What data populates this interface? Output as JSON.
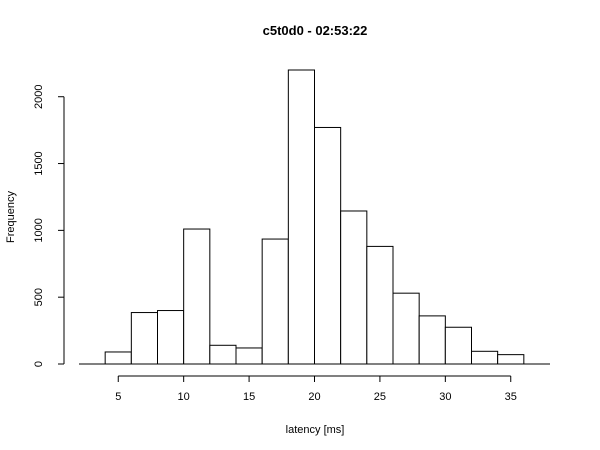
{
  "chart_data": {
    "type": "bar",
    "title": "c5t0d0 - 02:53:22",
    "xlabel": "latency [ms]",
    "ylabel": "Frequency",
    "xlim": [
      2,
      38
    ],
    "ylim": [
      0,
      2200
    ],
    "xticks": [
      5,
      10,
      15,
      20,
      25,
      30,
      35
    ],
    "yticks": [
      0,
      500,
      1000,
      1500,
      2000
    ],
    "bins": [
      {
        "x0": 2,
        "x1": 4,
        "value": 0
      },
      {
        "x0": 4,
        "x1": 6,
        "value": 90
      },
      {
        "x0": 6,
        "x1": 8,
        "value": 385
      },
      {
        "x0": 8,
        "x1": 10,
        "value": 400
      },
      {
        "x0": 10,
        "x1": 12,
        "value": 1010
      },
      {
        "x0": 12,
        "x1": 14,
        "value": 140
      },
      {
        "x0": 14,
        "x1": 16,
        "value": 120
      },
      {
        "x0": 16,
        "x1": 18,
        "value": 935
      },
      {
        "x0": 18,
        "x1": 20,
        "value": 2200
      },
      {
        "x0": 20,
        "x1": 22,
        "value": 1770
      },
      {
        "x0": 22,
        "x1": 24,
        "value": 1145
      },
      {
        "x0": 24,
        "x1": 26,
        "value": 880
      },
      {
        "x0": 26,
        "x1": 28,
        "value": 530
      },
      {
        "x0": 28,
        "x1": 30,
        "value": 360
      },
      {
        "x0": 30,
        "x1": 32,
        "value": 275
      },
      {
        "x0": 32,
        "x1": 34,
        "value": 95
      },
      {
        "x0": 34,
        "x1": 36,
        "value": 70
      },
      {
        "x0": 36,
        "x1": 38,
        "value": 0
      }
    ],
    "grid": false,
    "legend": "none"
  }
}
